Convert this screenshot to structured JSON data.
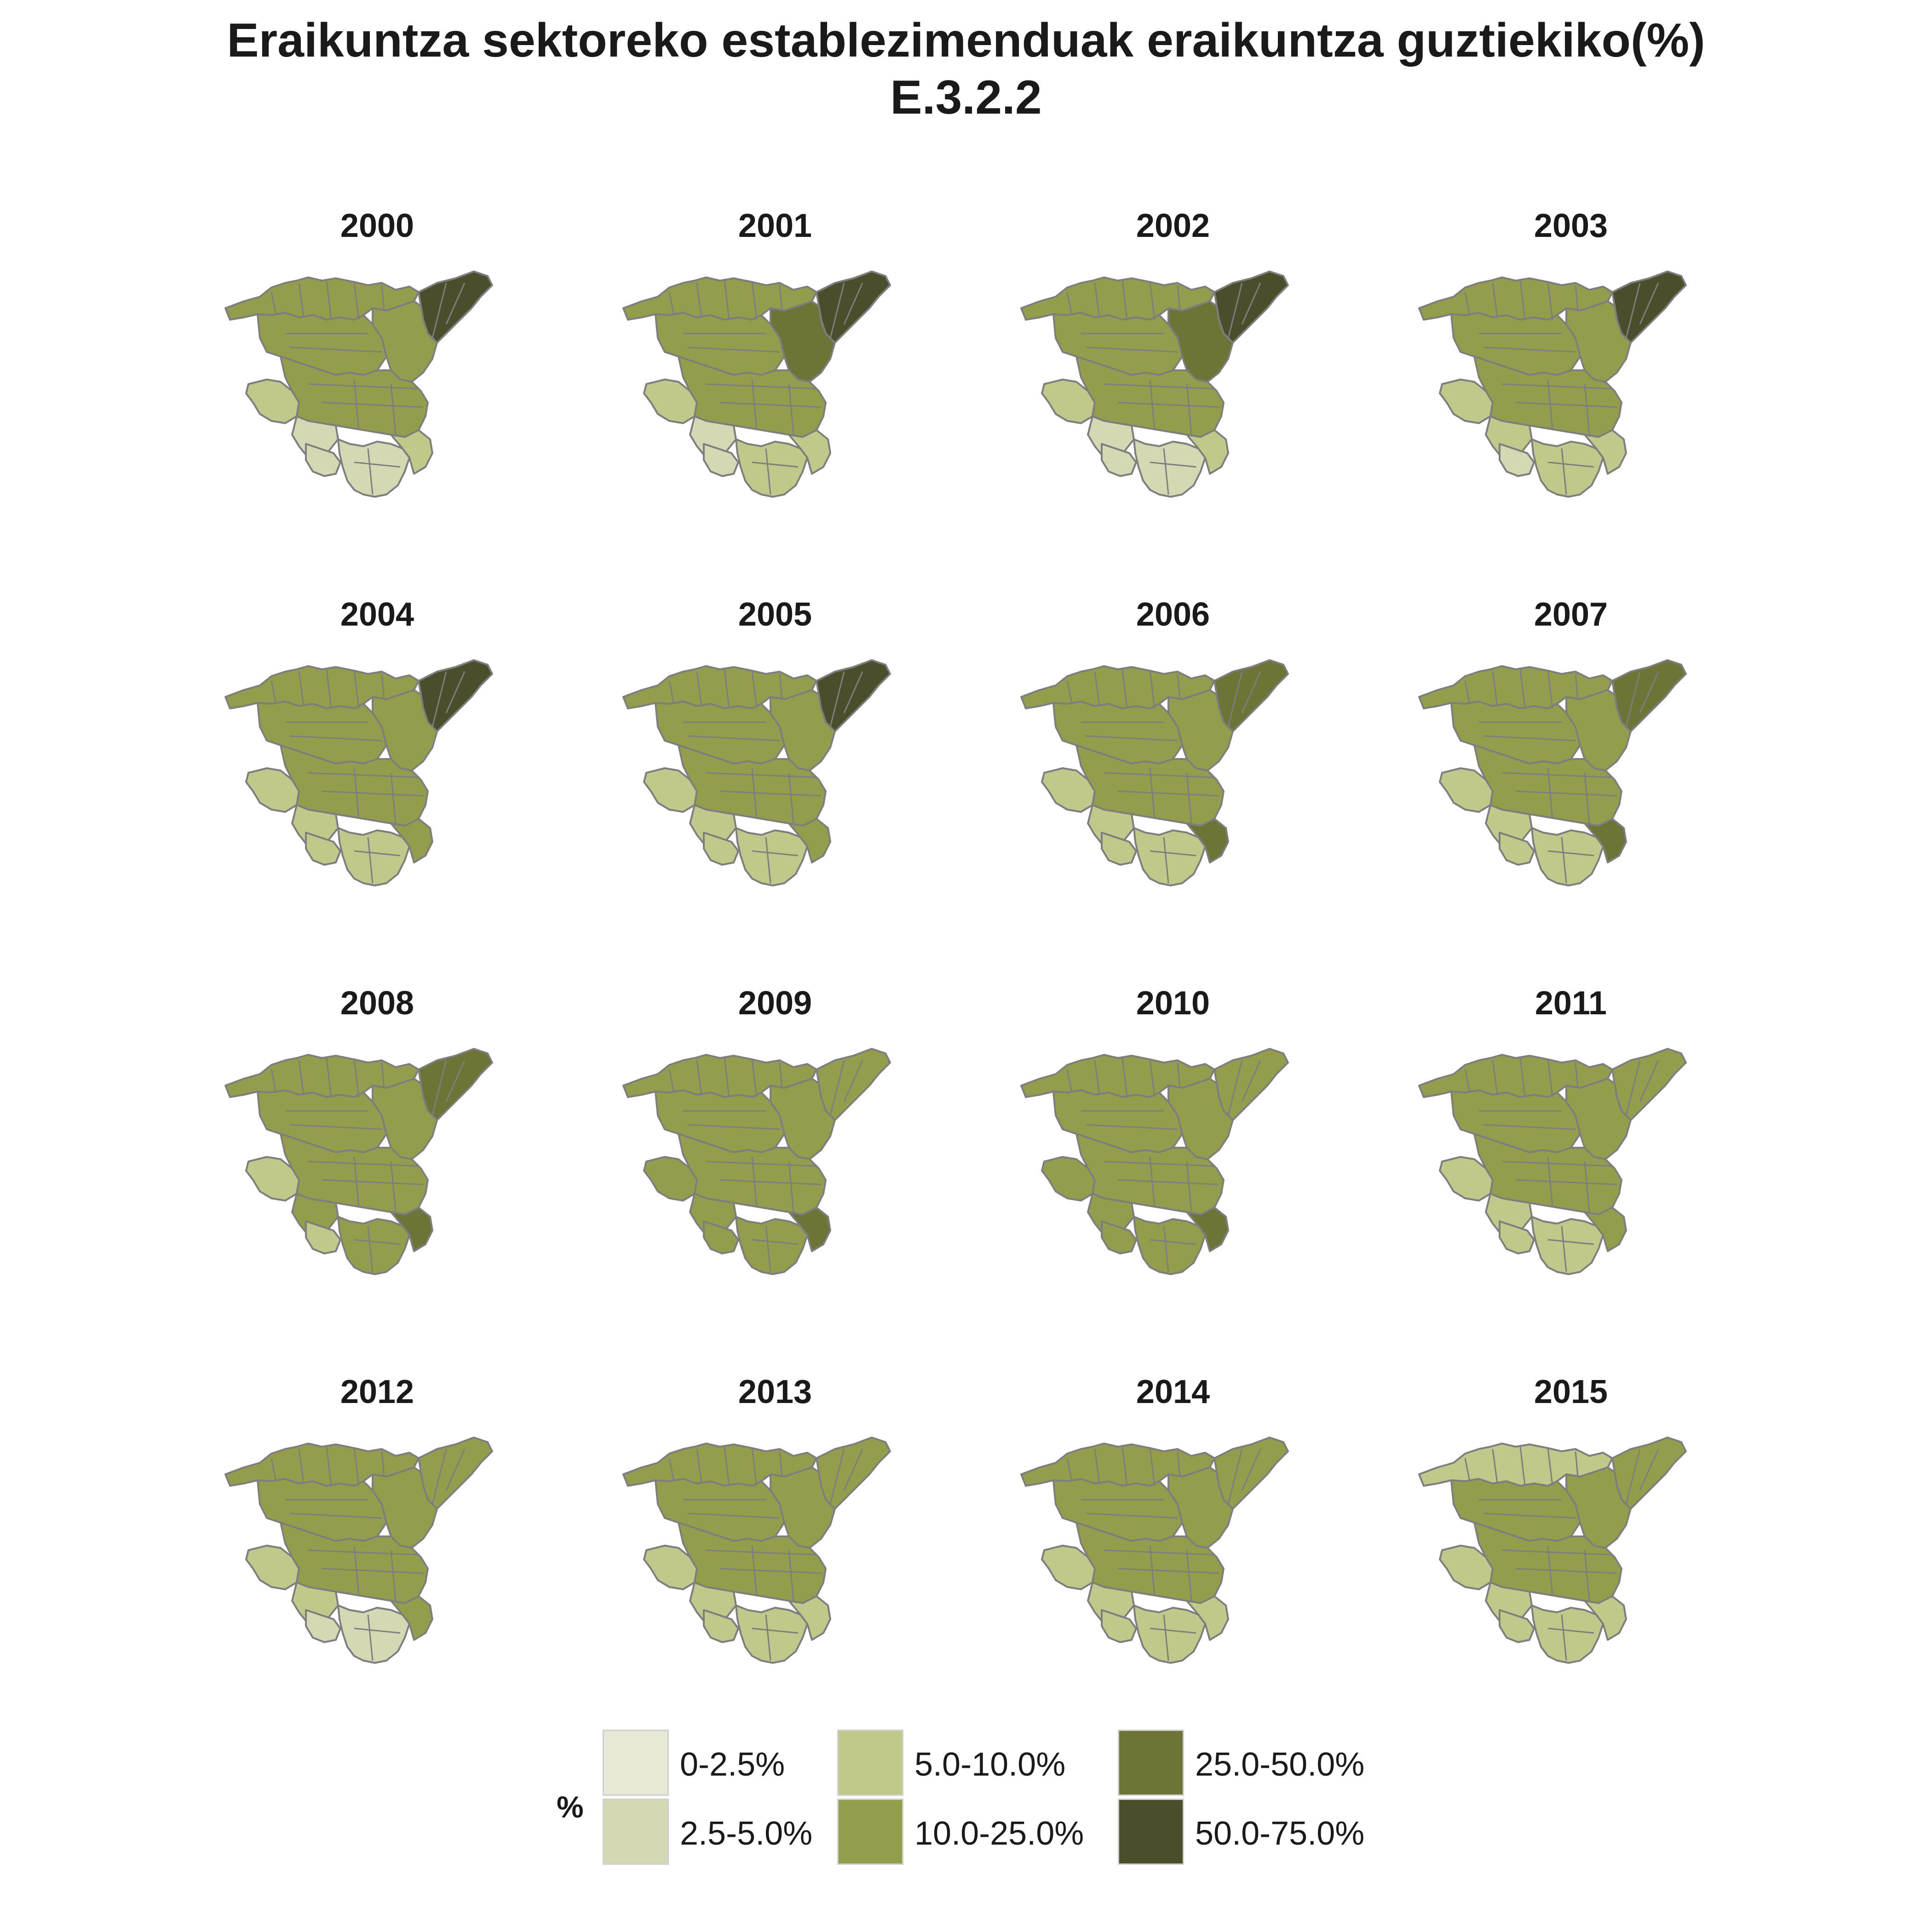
{
  "title": {
    "line1": "Eraikuntza sektoreko establezimenduak eraikuntza guztiekiko(%)",
    "line2": "E.3.2.2"
  },
  "panels": [
    {
      "year": "2000"
    },
    {
      "year": "2001"
    },
    {
      "year": "2002"
    },
    {
      "year": "2003"
    },
    {
      "year": "2004"
    },
    {
      "year": "2005"
    },
    {
      "year": "2006"
    },
    {
      "year": "2007"
    },
    {
      "year": "2008"
    },
    {
      "year": "2009"
    },
    {
      "year": "2010"
    },
    {
      "year": "2011"
    },
    {
      "year": "2012"
    },
    {
      "year": "2013"
    },
    {
      "year": "2014"
    },
    {
      "year": "2015"
    }
  ],
  "legend": {
    "title": "%",
    "items": [
      {
        "label": "0-2.5%",
        "color": "#e7e9d6"
      },
      {
        "label": "2.5-5.0%",
        "color": "#d4d9b3"
      },
      {
        "label": "5.0-10.0%",
        "color": "#c1c98a"
      },
      {
        "label": "10.0-25.0%",
        "color": "#939d4b"
      },
      {
        "label": "25.0-50.0%",
        "color": "#6e7436"
      },
      {
        "label": "50.0-75.0%",
        "color": "#4a4e2a"
      }
    ]
  }
}
